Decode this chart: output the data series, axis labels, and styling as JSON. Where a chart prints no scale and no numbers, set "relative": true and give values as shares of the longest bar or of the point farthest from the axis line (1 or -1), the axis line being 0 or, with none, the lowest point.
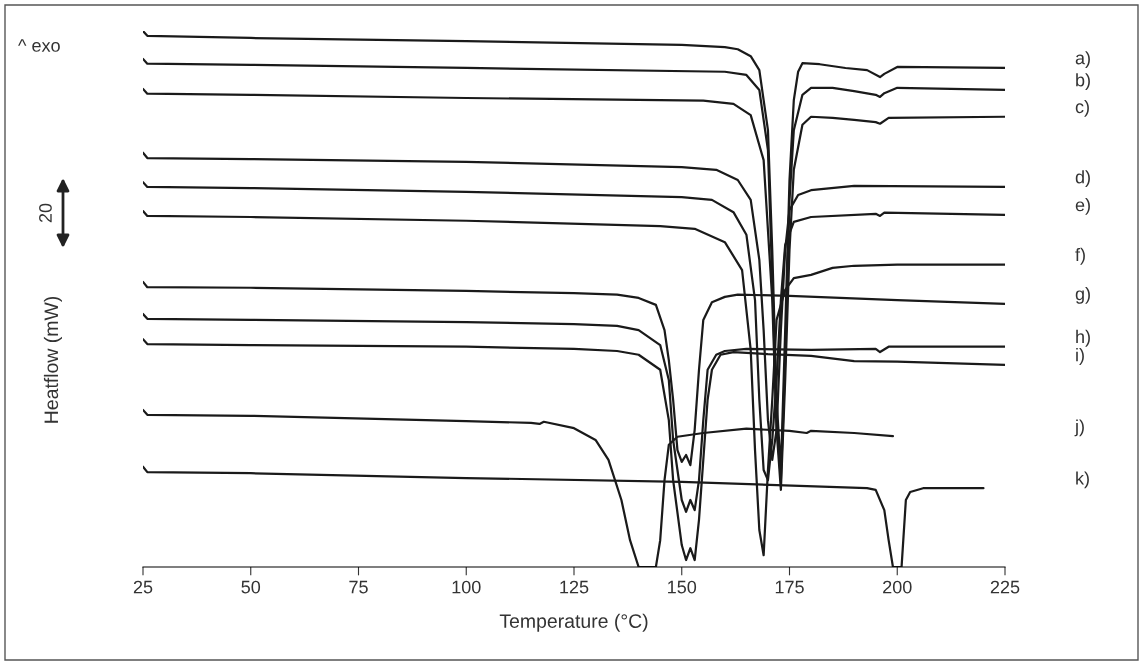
{
  "chart_data": {
    "type": "line",
    "relative": true,
    "xlabel": "Temperature (°C)",
    "ylabel": "Heatflow (mW)",
    "xlim": [
      25,
      225
    ],
    "xticks": [
      25,
      50,
      75,
      100,
      125,
      150,
      175,
      200,
      225
    ],
    "annotations": [
      "^ exo",
      "20"
    ],
    "grid": false,
    "legend": false,
    "series": [
      {
        "name": "a)",
        "color": "#1a1a1a",
        "x": [
          25,
          26,
          50,
          100,
          150,
          160,
          163,
          166,
          168,
          170,
          171,
          172,
          173,
          174,
          175,
          176,
          177,
          178,
          182,
          188,
          193,
          196,
          197,
          200,
          225
        ],
        "values": [
          1,
          0.991,
          0.987,
          0.981,
          0.974,
          0.97,
          0.966,
          0.953,
          0.927,
          0.815,
          0.591,
          0.312,
          0.181,
          0.442,
          0.722,
          0.871,
          0.924,
          0.94,
          0.938,
          0.931,
          0.927,
          0.914,
          0.92,
          0.933,
          0.931
        ]
      },
      {
        "name": "b)",
        "color": "#1a1a1a",
        "x": [
          25,
          26,
          50,
          100,
          160,
          165,
          168,
          170,
          171,
          172,
          173,
          174,
          175,
          176,
          178,
          180,
          185,
          190,
          195,
          196,
          197,
          200,
          225
        ],
        "values": [
          0.948,
          0.939,
          0.937,
          0.931,
          0.924,
          0.918,
          0.89,
          0.778,
          0.536,
          0.274,
          0.162,
          0.386,
          0.685,
          0.815,
          0.881,
          0.894,
          0.894,
          0.888,
          0.881,
          0.877,
          0.884,
          0.894,
          0.89
        ]
      },
      {
        "name": "c)",
        "color": "#1a1a1a",
        "x": [
          25,
          26,
          50,
          100,
          155,
          162,
          166,
          169,
          171,
          172,
          173,
          174,
          175,
          176,
          178,
          180,
          185,
          190,
          195,
          196,
          198,
          225
        ],
        "values": [
          0.892,
          0.883,
          0.881,
          0.875,
          0.87,
          0.864,
          0.843,
          0.759,
          0.498,
          0.256,
          0.144,
          0.349,
          0.592,
          0.741,
          0.825,
          0.84,
          0.838,
          0.834,
          0.83,
          0.827,
          0.838,
          0.84
        ]
      },
      {
        "name": "d)",
        "color": "#1a1a1a",
        "x": [
          25,
          26,
          50,
          100,
          150,
          158,
          163,
          166,
          168,
          169,
          170,
          171,
          172,
          173,
          174,
          175,
          177,
          180,
          190,
          225
        ],
        "values": [
          0.773,
          0.763,
          0.761,
          0.756,
          0.746,
          0.741,
          0.722,
          0.685,
          0.573,
          0.442,
          0.274,
          0.2,
          0.256,
          0.442,
          0.592,
          0.666,
          0.694,
          0.703,
          0.711,
          0.709
        ]
      },
      {
        "name": "e)",
        "color": "#1a1a1a",
        "x": [
          25,
          26,
          50,
          100,
          150,
          157,
          162,
          165,
          167,
          168,
          169,
          170,
          171,
          172,
          173,
          174,
          176,
          180,
          195,
          196,
          197,
          225
        ],
        "values": [
          0.718,
          0.709,
          0.707,
          0.7,
          0.69,
          0.685,
          0.662,
          0.62,
          0.498,
          0.312,
          0.181,
          0.162,
          0.237,
          0.349,
          0.498,
          0.601,
          0.644,
          0.653,
          0.659,
          0.655,
          0.661,
          0.657
        ]
      },
      {
        "name": "f)",
        "color": "#1a1a1a",
        "x": [
          25,
          26,
          50,
          100,
          145,
          153,
          160,
          164,
          166,
          167,
          168,
          169,
          170,
          171,
          172,
          174,
          176,
          180,
          185,
          190,
          200,
          225
        ],
        "values": [
          0.664,
          0.655,
          0.653,
          0.646,
          0.636,
          0.631,
          0.606,
          0.554,
          0.405,
          0.218,
          0.069,
          0.022,
          0.181,
          0.312,
          0.461,
          0.517,
          0.539,
          0.545,
          0.558,
          0.562,
          0.564,
          0.564
        ]
      },
      {
        "name": "g)",
        "color": "#1a1a1a",
        "x": [
          25,
          26,
          50,
          100,
          125,
          135,
          140,
          144,
          146,
          147,
          148,
          149,
          150,
          151,
          152,
          153,
          154,
          155,
          157,
          160,
          163,
          175,
          200,
          225
        ],
        "values": [
          0.532,
          0.522,
          0.521,
          0.515,
          0.511,
          0.508,
          0.502,
          0.489,
          0.442,
          0.386,
          0.312,
          0.218,
          0.196,
          0.209,
          0.19,
          0.256,
          0.368,
          0.461,
          0.494,
          0.504,
          0.508,
          0.506,
          0.498,
          0.491
        ]
      },
      {
        "name": "h)",
        "color": "#1a1a1a",
        "x": [
          25,
          26,
          50,
          100,
          125,
          135,
          140,
          145,
          147,
          148,
          150,
          151,
          152,
          153,
          154,
          155,
          156,
          158,
          160,
          165,
          180,
          195,
          196,
          198,
          225
        ],
        "values": [
          0.472,
          0.463,
          0.461,
          0.457,
          0.453,
          0.45,
          0.442,
          0.414,
          0.349,
          0.237,
          0.125,
          0.103,
          0.125,
          0.106,
          0.162,
          0.274,
          0.368,
          0.396,
          0.403,
          0.407,
          0.405,
          0.407,
          0.401,
          0.411,
          0.411
        ]
      },
      {
        "name": "i)",
        "color": "#1a1a1a",
        "x": [
          25,
          26,
          50,
          100,
          125,
          135,
          140,
          145,
          147,
          148,
          150,
          151,
          152,
          153,
          154,
          155,
          156,
          157,
          159,
          162,
          170,
          180,
          190,
          200,
          225
        ],
        "values": [
          0.425,
          0.416,
          0.414,
          0.411,
          0.407,
          0.403,
          0.396,
          0.368,
          0.274,
          0.162,
          0.041,
          0.013,
          0.035,
          0.013,
          0.088,
          0.2,
          0.312,
          0.368,
          0.396,
          0.401,
          0.397,
          0.394,
          0.384,
          0.383,
          0.377
        ]
      },
      {
        "name": "j)",
        "color": "#1a1a1a",
        "x": [
          25,
          26,
          50,
          100,
          115,
          117,
          118,
          125,
          130,
          133,
          136,
          138,
          140,
          144,
          145,
          146,
          147,
          149,
          155,
          165,
          175,
          179,
          180,
          190,
          199
        ],
        "values": [
          0.293,
          0.284,
          0.282,
          0.272,
          0.269,
          0.267,
          0.271,
          0.259,
          0.237,
          0.2,
          0.125,
          0.05,
          0,
          0,
          0.05,
          0.162,
          0.228,
          0.243,
          0.25,
          0.258,
          0.254,
          0.25,
          0.254,
          0.25,
          0.244
        ]
      },
      {
        "name": "k)",
        "color": "#1a1a1a",
        "x": [
          25,
          26,
          50,
          100,
          150,
          193,
          195,
          197,
          198,
          199,
          201,
          202,
          203,
          206,
          220
        ],
        "values": [
          0.187,
          0.177,
          0.175,
          0.166,
          0.159,
          0.147,
          0.144,
          0.106,
          0.05,
          0,
          0,
          0.125,
          0.14,
          0.147,
          0.147
        ]
      }
    ]
  }
}
